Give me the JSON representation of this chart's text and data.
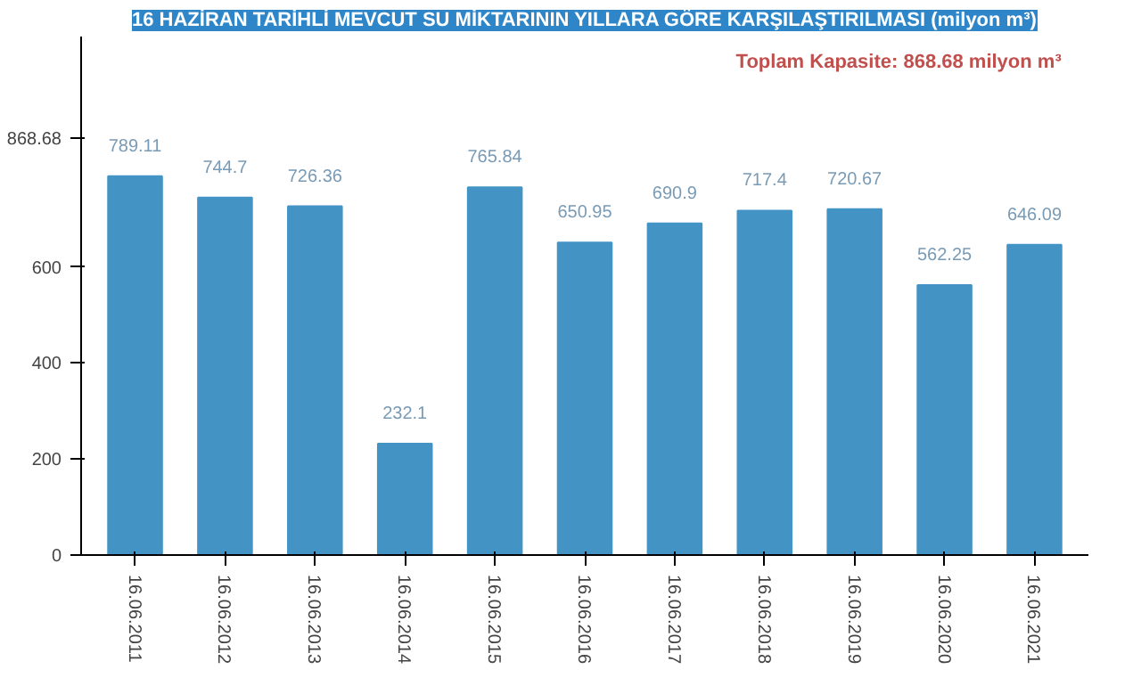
{
  "chart_data": {
    "type": "bar",
    "title": "16 HAZİRAN TARİHLİ MEVCUT SU MİKTARININ YILLARA GÖRE KARŞILAŞTIRILMASI (milyon m³)",
    "categories": [
      "16.06.2011",
      "16.06.2012",
      "16.06.2013",
      "16.06.2014",
      "16.06.2015",
      "16.06.2016",
      "16.06.2017",
      "16.06.2018",
      "16.06.2019",
      "16.06.2020",
      "16.06.2021"
    ],
    "values": [
      789.11,
      744.7,
      726.36,
      232.1,
      765.84,
      650.95,
      690.9,
      717.4,
      720.67,
      562.25,
      646.09
    ],
    "color": "#4394c4",
    "ylim": [
      0,
      1080
    ],
    "yticks": [
      0,
      200,
      400,
      600,
      868.68
    ],
    "data_labels": true,
    "grid": false,
    "annotations": [
      "Toplam Kapasite: 868.68 milyon m³"
    ]
  }
}
